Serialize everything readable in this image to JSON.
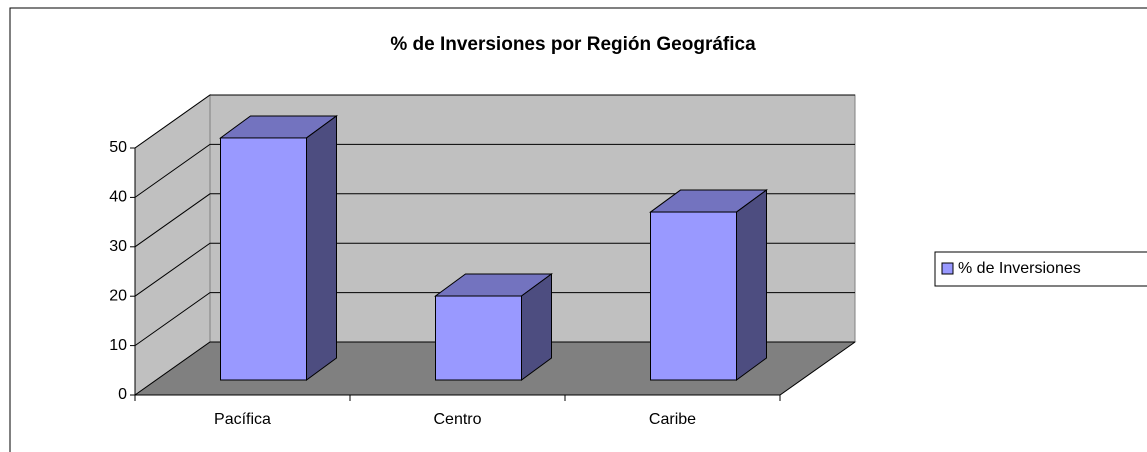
{
  "chart_data": {
    "type": "bar3d",
    "title": "% de Inversiones por Región Geográfica",
    "categories": [
      "Pacífica",
      "Centro",
      "Caribe"
    ],
    "series": [
      {
        "name": "% de Inversiones",
        "color": "#9999ff",
        "values": [
          49,
          17,
          34
        ]
      }
    ],
    "ylim": [
      0,
      50
    ],
    "yticks": [
      0,
      10,
      20,
      30,
      40,
      50
    ],
    "grid": true,
    "legend": "right"
  }
}
